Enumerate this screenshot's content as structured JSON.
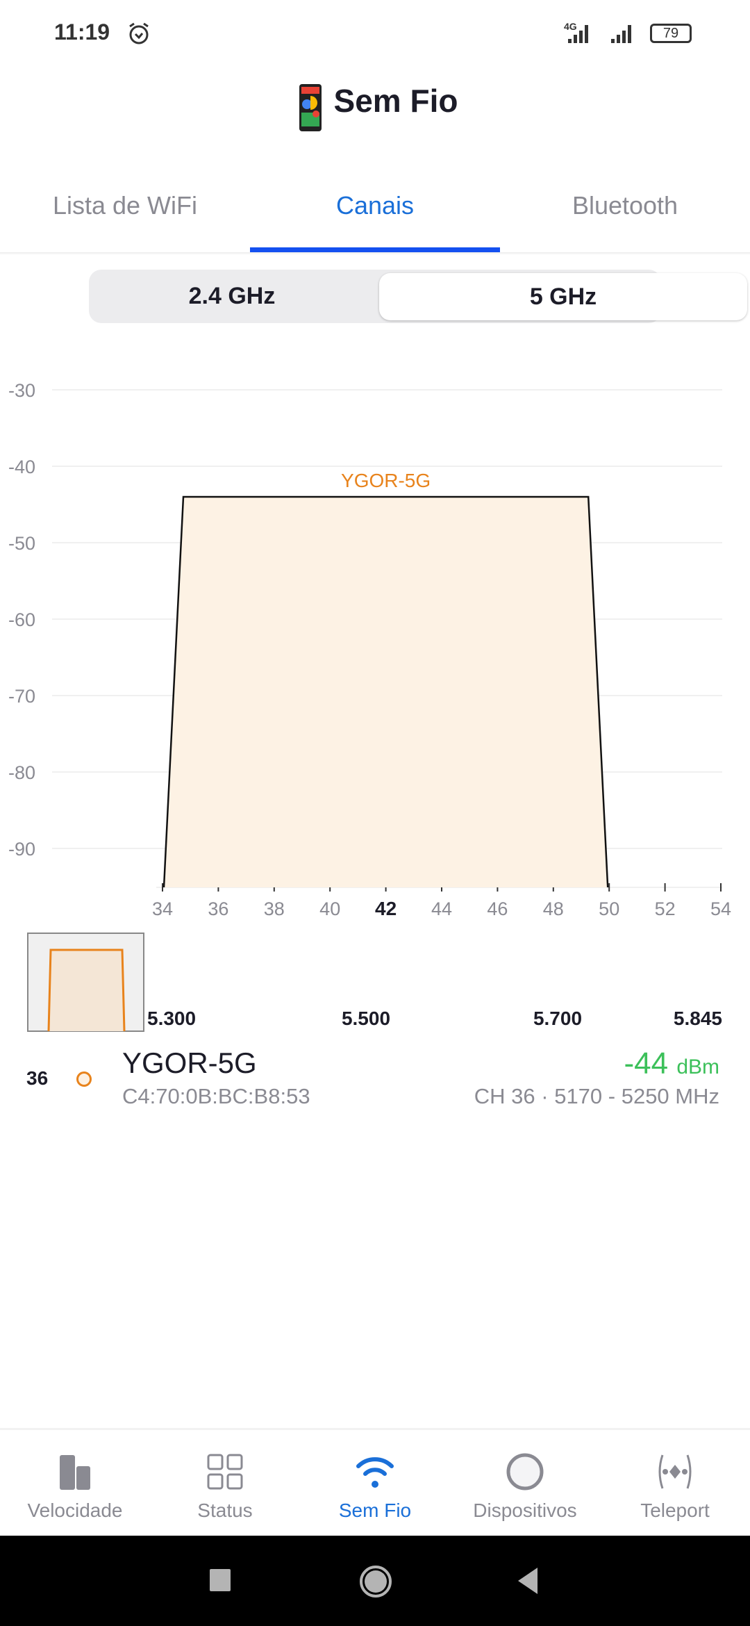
{
  "status_bar": {
    "time": "11:19",
    "network": "4G",
    "battery": "79"
  },
  "header": {
    "title": "Sem Fio"
  },
  "tabs": [
    {
      "label": "Lista de WiFi"
    },
    {
      "label": "Canais",
      "active": true
    },
    {
      "label": "Bluetooth"
    }
  ],
  "band_selector": {
    "options": [
      "2.4 GHz",
      "5 GHz"
    ],
    "selected": "5 GHz"
  },
  "chart_data": {
    "type": "area",
    "y_ticks": [
      "-30",
      "-40",
      "-50",
      "-60",
      "-70",
      "-80",
      "-90"
    ],
    "x_ticks": [
      "34",
      "36",
      "38",
      "40",
      "42",
      "44",
      "46",
      "48",
      "50",
      "52",
      "54"
    ],
    "highlighted_tick": "42",
    "ylim": [
      -95,
      -30
    ],
    "xlim": [
      34,
      54
    ],
    "grid": true,
    "series": [
      {
        "name": "YGOR-5G",
        "color": "#e8831c",
        "channel_start": 34,
        "channel_end": 50,
        "center": 42,
        "signal": -44
      }
    ],
    "overview_ticks": [
      "5.300",
      "5.500",
      "5.700",
      "5.845"
    ]
  },
  "networks": [
    {
      "channel": "36",
      "ssid": "YGOR-5G",
      "mac": "C4:70:0B:BC:B8:53",
      "signal": "-44",
      "unit": "dBm",
      "info": "CH 36 · 5170 - 5250 MHz",
      "color": "#e8831c"
    }
  ],
  "bottom_nav": [
    {
      "label": "Velocidade",
      "icon": "speed-bars-icon"
    },
    {
      "label": "Status",
      "icon": "grid-icon"
    },
    {
      "label": "Sem Fio",
      "icon": "wifi-icon",
      "active": true
    },
    {
      "label": "Dispositivos",
      "icon": "devices-circle-icon"
    },
    {
      "label": "Teleport",
      "icon": "teleport-icon"
    }
  ],
  "colors": {
    "accent": "#1a6fd8",
    "signal_good": "#3cc05a",
    "network": "#e8831c"
  }
}
